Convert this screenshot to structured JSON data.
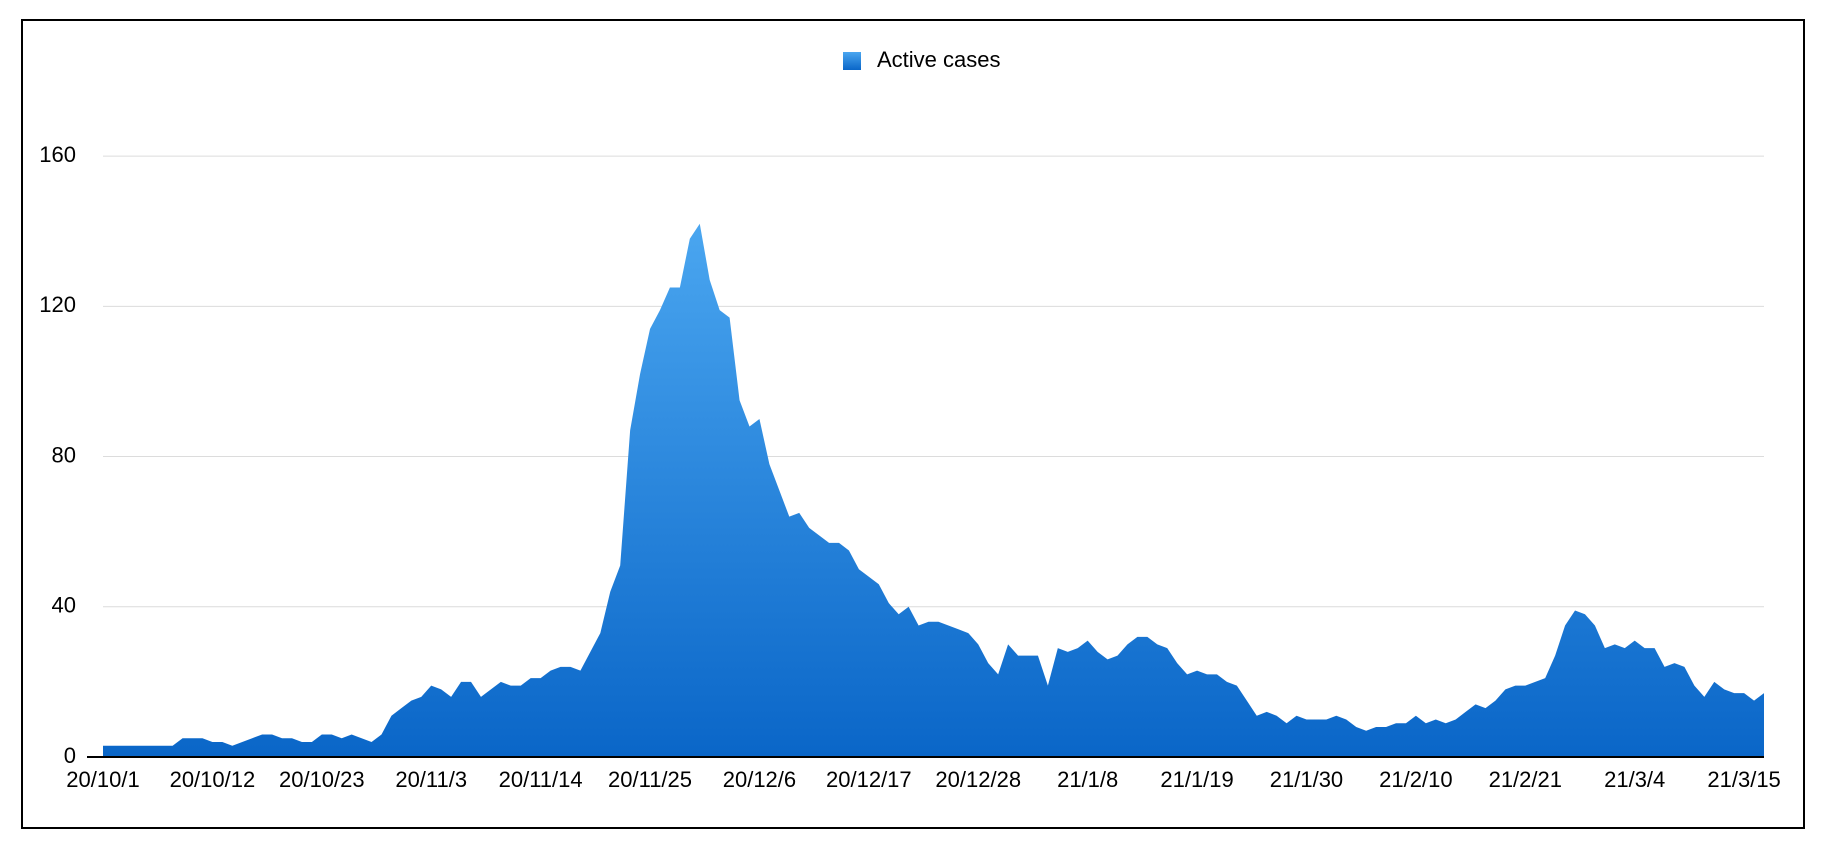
{
  "chart_data": {
    "type": "area",
    "categories": [
      "20/10/1",
      null,
      null,
      null,
      null,
      null,
      null,
      null,
      null,
      null,
      null,
      "20/10/12",
      null,
      null,
      null,
      null,
      null,
      null,
      null,
      null,
      null,
      null,
      "20/10/23",
      null,
      null,
      null,
      null,
      null,
      null,
      null,
      null,
      null,
      null,
      "20/11/3",
      null,
      null,
      null,
      null,
      null,
      null,
      null,
      null,
      null,
      null,
      "20/11/14",
      null,
      null,
      null,
      null,
      null,
      null,
      null,
      null,
      null,
      null,
      "20/11/25",
      null,
      null,
      null,
      null,
      null,
      null,
      null,
      null,
      null,
      null,
      "20/12/6",
      null,
      null,
      null,
      null,
      null,
      null,
      null,
      null,
      null,
      null,
      "20/12/17",
      null,
      null,
      null,
      null,
      null,
      null,
      null,
      null,
      null,
      null,
      "20/12/28",
      null,
      null,
      null,
      null,
      null,
      null,
      null,
      null,
      null,
      null,
      "21/1/8",
      null,
      null,
      null,
      null,
      null,
      null,
      null,
      null,
      null,
      null,
      "21/1/19",
      null,
      null,
      null,
      null,
      null,
      null,
      null,
      null,
      null,
      null,
      "21/1/30",
      null,
      null,
      null,
      null,
      null,
      null,
      null,
      null,
      null,
      null,
      "21/2/10",
      null,
      null,
      null,
      null,
      null,
      null,
      null,
      null,
      null,
      null,
      "21/2/21",
      null,
      null,
      null,
      null,
      null,
      null,
      null,
      null,
      null,
      null,
      "21/3/4",
      null,
      null,
      null,
      null,
      null,
      null,
      null,
      null,
      null,
      null,
      "21/3/15",
      null,
      null
    ],
    "series": [
      {
        "name": "Active cases",
        "color": "#0a66c8",
        "values": [
          3,
          3,
          3,
          3,
          3,
          3,
          3,
          3,
          5,
          5,
          5,
          4,
          4,
          3,
          4,
          5,
          6,
          6,
          5,
          5,
          4,
          4,
          6,
          6,
          5,
          6,
          5,
          4,
          6,
          11,
          13,
          15,
          16,
          19,
          18,
          16,
          20,
          20,
          16,
          18,
          20,
          19,
          19,
          21,
          21,
          23,
          24,
          24,
          23,
          28,
          33,
          44,
          51,
          87,
          102,
          114,
          119,
          125,
          125,
          138,
          142,
          127,
          119,
          117,
          95,
          88,
          90,
          78,
          71,
          64,
          65,
          61,
          59,
          57,
          57,
          55,
          50,
          48,
          46,
          41,
          38,
          40,
          35,
          36,
          36,
          35,
          34,
          33,
          30,
          25,
          22,
          30,
          27,
          27,
          27,
          19,
          29,
          28,
          29,
          31,
          28,
          26,
          27,
          30,
          32,
          32,
          30,
          29,
          25,
          22,
          23,
          22,
          22,
          20,
          19,
          15,
          11,
          12,
          11,
          9,
          11,
          10,
          10,
          10,
          11,
          10,
          8,
          7,
          8,
          8,
          9,
          9,
          11,
          9,
          10,
          9,
          10,
          12,
          14,
          13,
          15,
          18,
          19,
          19,
          20,
          21,
          27,
          35,
          39,
          38,
          35,
          29,
          30,
          29,
          31,
          29,
          29,
          24,
          25,
          24,
          19,
          16,
          20,
          18,
          17,
          17,
          15,
          17
        ]
      }
    ],
    "ylim": [
      0,
      180
    ],
    "yticks": [
      0,
      40,
      80,
      120,
      160
    ],
    "grid": true,
    "legend": "top"
  }
}
